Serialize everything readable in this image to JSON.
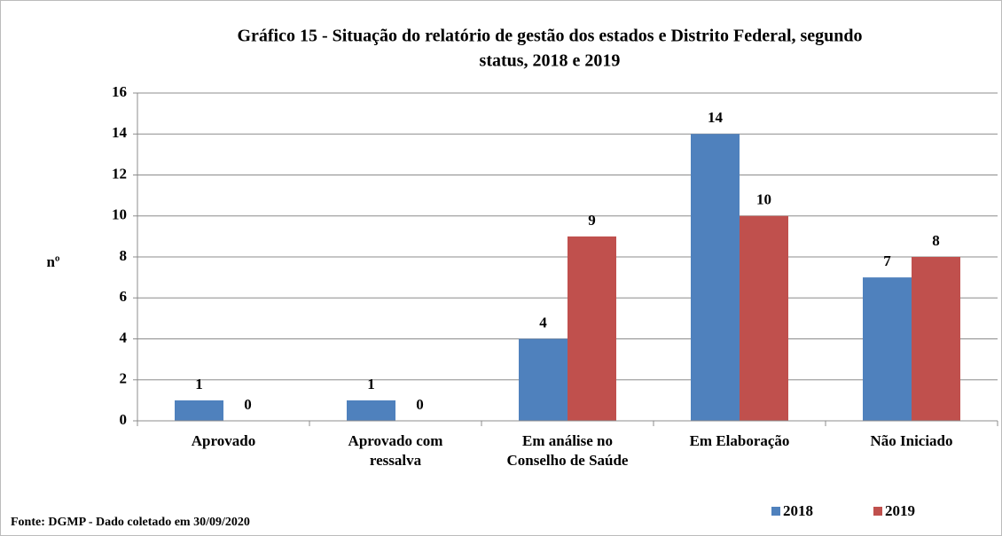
{
  "chart_data": {
    "type": "bar",
    "title": [
      "Gráfico 15 - Situação do relatório de gestão dos estados e  Distrito Federal,  segundo",
      "status,  2018 e 2019"
    ],
    "ylabel": "nº",
    "categories": [
      [
        "Aprovado"
      ],
      [
        "Aprovado com",
        "ressalva"
      ],
      [
        "Em análise no",
        "Conselho de Saúde"
      ],
      [
        "Em Elaboração"
      ],
      [
        "Não Iniciado"
      ]
    ],
    "series": [
      {
        "name": "2018",
        "color": "#4f81bd",
        "values": [
          1,
          1,
          4,
          14,
          7
        ]
      },
      {
        "name": "2019",
        "color": "#c0504d",
        "values": [
          0,
          0,
          9,
          10,
          8
        ]
      }
    ],
    "ylim": [
      0,
      16
    ],
    "yticks": [
      0,
      2,
      4,
      6,
      8,
      10,
      12,
      14,
      16
    ],
    "grid": true,
    "legend": "bottom-right",
    "source": "Fonte:   DGMP - Dado coletado em 30/09/2020"
  }
}
